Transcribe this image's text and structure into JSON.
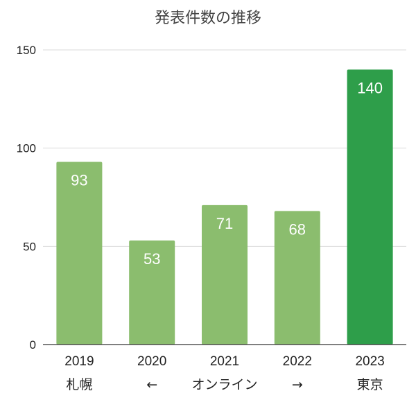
{
  "chart_data": {
    "type": "bar",
    "title": "発表件数の推移",
    "categories": [
      "2019",
      "2020",
      "2021",
      "2022",
      "2023"
    ],
    "category_sublabels": [
      "札幌",
      "←",
      "オンライン",
      "→",
      "東京"
    ],
    "values": [
      93,
      53,
      71,
      68,
      140
    ],
    "data_labels": [
      "93",
      "53",
      "71",
      "68",
      "140"
    ],
    "ylim": [
      0,
      150
    ],
    "yticks": [
      0,
      50,
      100,
      150
    ],
    "ytick_labels": [
      "0",
      "50",
      "100",
      "150"
    ],
    "xlabel": "",
    "ylabel": "",
    "grid": true,
    "bar_colors": [
      "#8bbd6e",
      "#8bbd6e",
      "#8bbd6e",
      "#8bbd6e",
      "#2e9e4a"
    ],
    "highlight_color": "#2e9e4a"
  }
}
